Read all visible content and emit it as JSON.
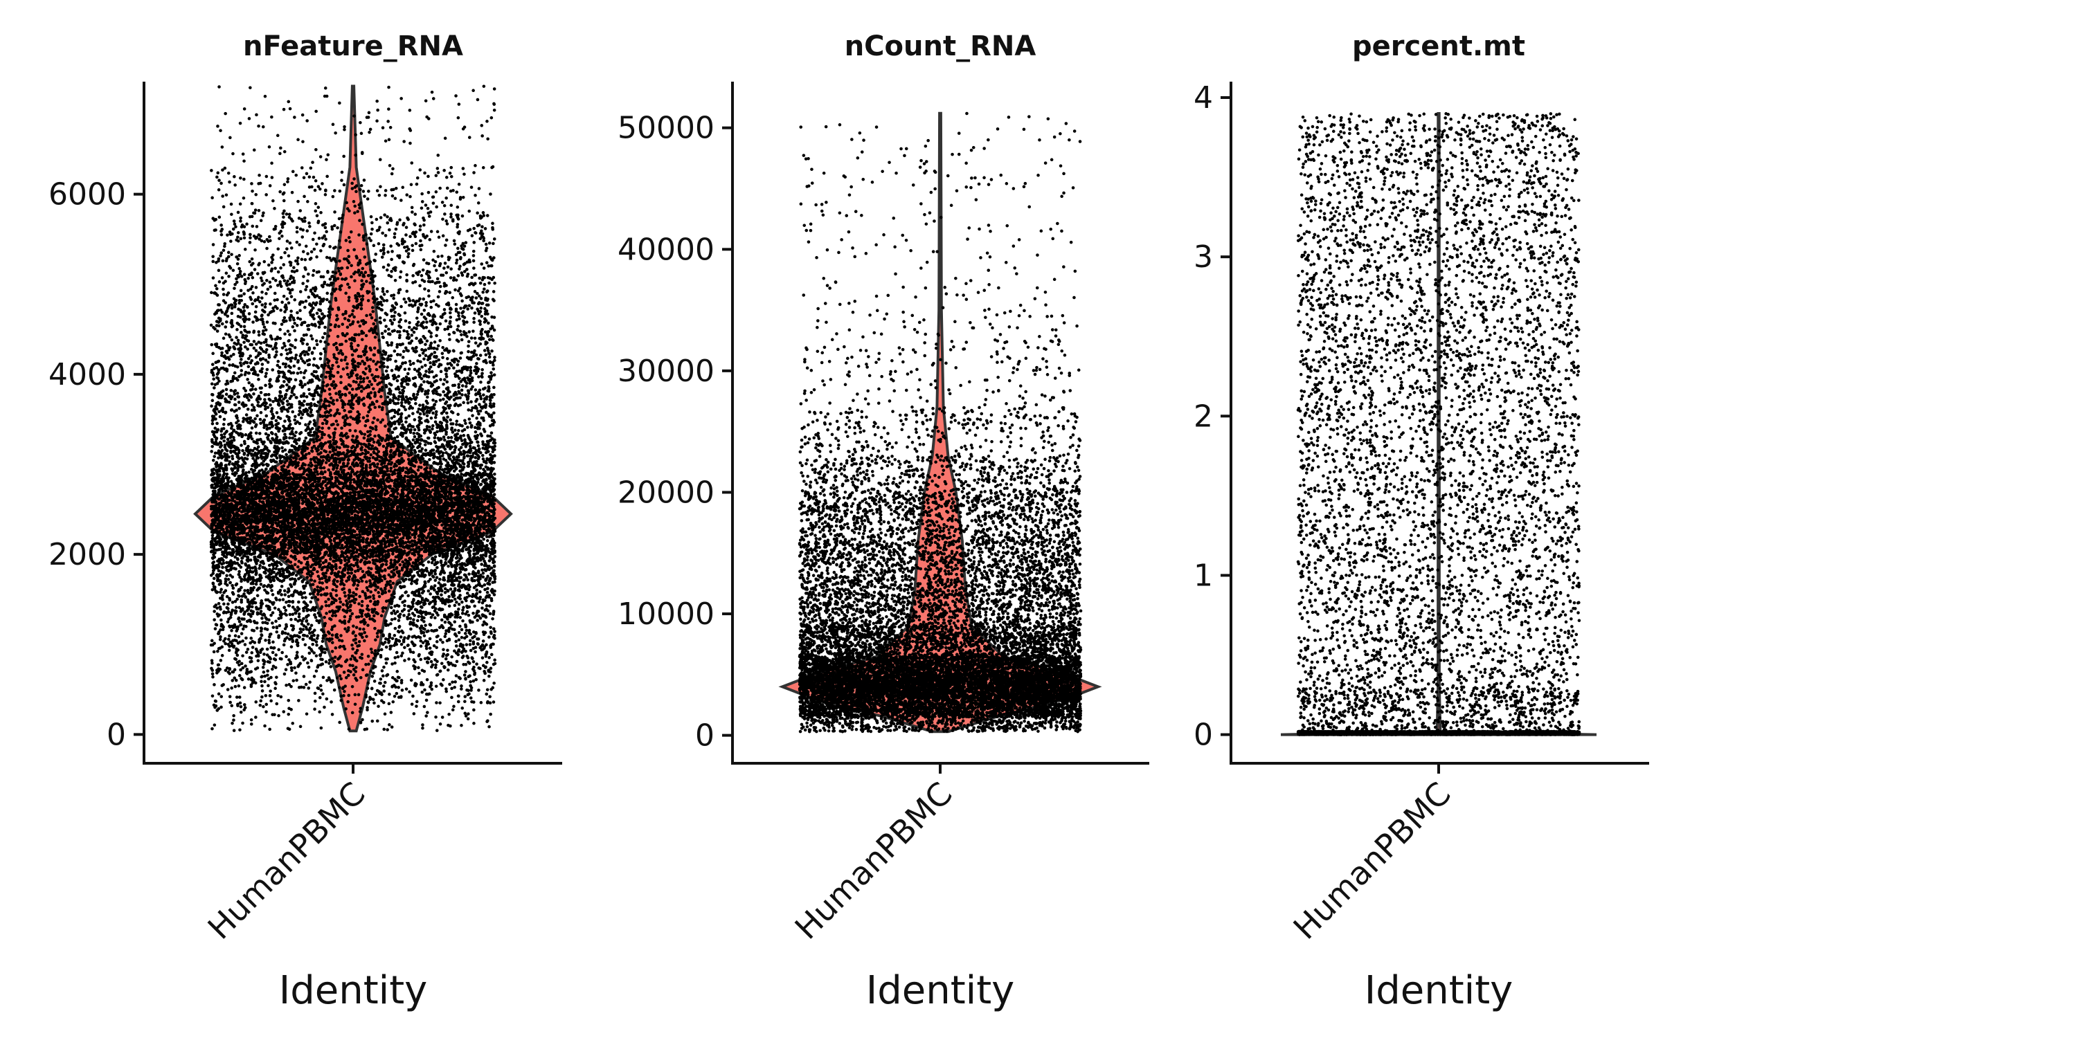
{
  "colors": {
    "violin_fill": "#F8766D",
    "violin_stroke": "#333333",
    "point": "#000000",
    "axis": "#111111"
  },
  "chart_data": [
    {
      "type": "violin",
      "title": "nFeature_RNA",
      "xlabel": "Identity",
      "ylabel": "",
      "categories": [
        "HumanPBMC"
      ],
      "ylim": [
        -320,
        7250
      ],
      "yticks": [
        0,
        2000,
        4000,
        6000
      ],
      "ytick_labels": [
        "0",
        "2000",
        "4000",
        "6000"
      ],
      "distribution": {
        "min": 40,
        "max": 7200,
        "median": 2450,
        "density": [
          [
            40,
            0.02
          ],
          [
            300,
            0.06
          ],
          [
            700,
            0.11
          ],
          [
            1000,
            0.17
          ],
          [
            1300,
            0.2
          ],
          [
            1700,
            0.28
          ],
          [
            2000,
            0.5
          ],
          [
            2250,
            0.88
          ],
          [
            2450,
            1.0
          ],
          [
            2650,
            0.88
          ],
          [
            2900,
            0.55
          ],
          [
            3300,
            0.24
          ],
          [
            3800,
            0.2
          ],
          [
            4300,
            0.17
          ],
          [
            4800,
            0.14
          ],
          [
            5300,
            0.1
          ],
          [
            5800,
            0.06
          ],
          [
            6300,
            0.02
          ],
          [
            7200,
            0.005
          ]
        ]
      },
      "points": {
        "count": 14000,
        "ymin": 40,
        "ymax": 7200
      }
    },
    {
      "type": "violin",
      "title": "nCount_RNA",
      "xlabel": "Identity",
      "ylabel": "",
      "categories": [
        "HumanPBMC"
      ],
      "ylim": [
        -2300,
        53800
      ],
      "yticks": [
        0,
        10000,
        20000,
        30000,
        40000,
        50000
      ],
      "ytick_labels": [
        "0",
        "10000",
        "20000",
        "30000",
        "40000",
        "50000"
      ],
      "distribution": {
        "min": 300,
        "max": 51200,
        "median": 4000,
        "density": [
          [
            300,
            0.05
          ],
          [
            1500,
            0.35
          ],
          [
            3000,
            0.8
          ],
          [
            4000,
            1.0
          ],
          [
            5000,
            0.8
          ],
          [
            6500,
            0.4
          ],
          [
            9000,
            0.2
          ],
          [
            12000,
            0.16
          ],
          [
            16000,
            0.14
          ],
          [
            20000,
            0.1
          ],
          [
            23000,
            0.05
          ],
          [
            27000,
            0.02
          ],
          [
            35000,
            0.008
          ],
          [
            51200,
            0.004
          ]
        ]
      },
      "points": {
        "count": 14000,
        "ymin": 300,
        "ymax": 51200
      }
    },
    {
      "type": "violin",
      "title": "percent.mt",
      "xlabel": "Identity",
      "ylabel": "",
      "categories": [
        "HumanPBMC"
      ],
      "ylim": [
        -0.18,
        4.1
      ],
      "yticks": [
        0,
        1,
        2,
        3,
        4
      ],
      "ytick_labels": [
        "0",
        "1",
        "2",
        "3",
        "4"
      ],
      "distribution": {
        "min": 0,
        "max": 3.9,
        "median": 0,
        "density": [
          [
            0,
            1.0
          ],
          [
            0.02,
            0.01
          ],
          [
            0.3,
            0.004
          ],
          [
            3.9,
            0.003
          ]
        ]
      },
      "points": {
        "count": 9000,
        "ymin": 0,
        "ymax": 3.9
      }
    }
  ]
}
